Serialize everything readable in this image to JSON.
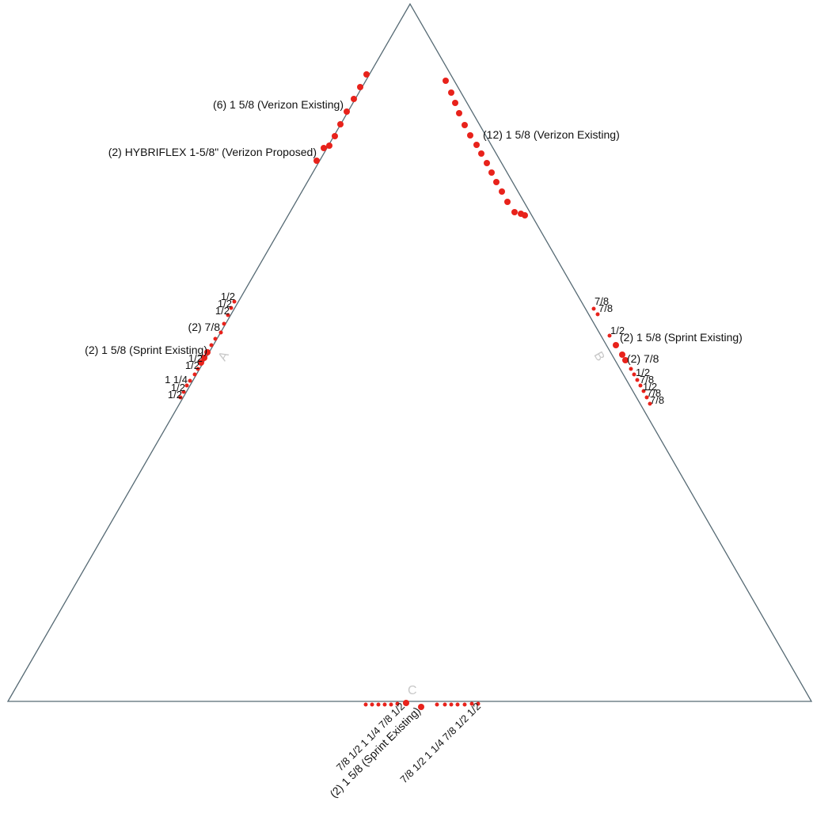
{
  "diagram": {
    "line_color": "#566a74",
    "dot_color": "#e8221b",
    "faces": {
      "a": "A",
      "b": "B",
      "c": "C"
    },
    "face_a_labels": {
      "verizon_existing": "(6) 1 5/8 (Verizon Existing)",
      "verizon_proposed": "(2) HYBRIFLEX 1-5/8\" (Verizon Proposed)",
      "half_1": "1/2",
      "half_2": "1/2",
      "half_3": "1/2",
      "seven_eighths_2": "(2) 7/8",
      "sprint_existing": "(2) 1 5/8 (Sprint Existing)",
      "half_4": "1/2",
      "half_5": "1/2",
      "one_quarter": "1 1/4",
      "half_6": "1/2",
      "half_7": "1/2"
    },
    "face_b_labels": {
      "verizon_existing": "(12) 1 5/8 (Verizon Existing)",
      "seven_eighths_1": "7/8",
      "seven_eighths_2": "7/8",
      "half_1": "1/2",
      "sprint_existing": "(2) 1 5/8 (Sprint Existing)",
      "seven_eighths_pair": "(2) 7/8",
      "half_2": "1/2",
      "seven_eighths_3": "7/8",
      "half_3": "1/2",
      "seven_eighths_4": "7/8",
      "seven_eighths_5": "7/8"
    },
    "face_c_labels": {
      "sprint_existing": "(2) 1 5/8 (Sprint Existing)",
      "left_cluster": "7/8 1/2 1 1/4 7/8 1/2",
      "right_cluster": "7/8 1/2 1 1/4 7/8 1/2 1/2"
    }
  }
}
